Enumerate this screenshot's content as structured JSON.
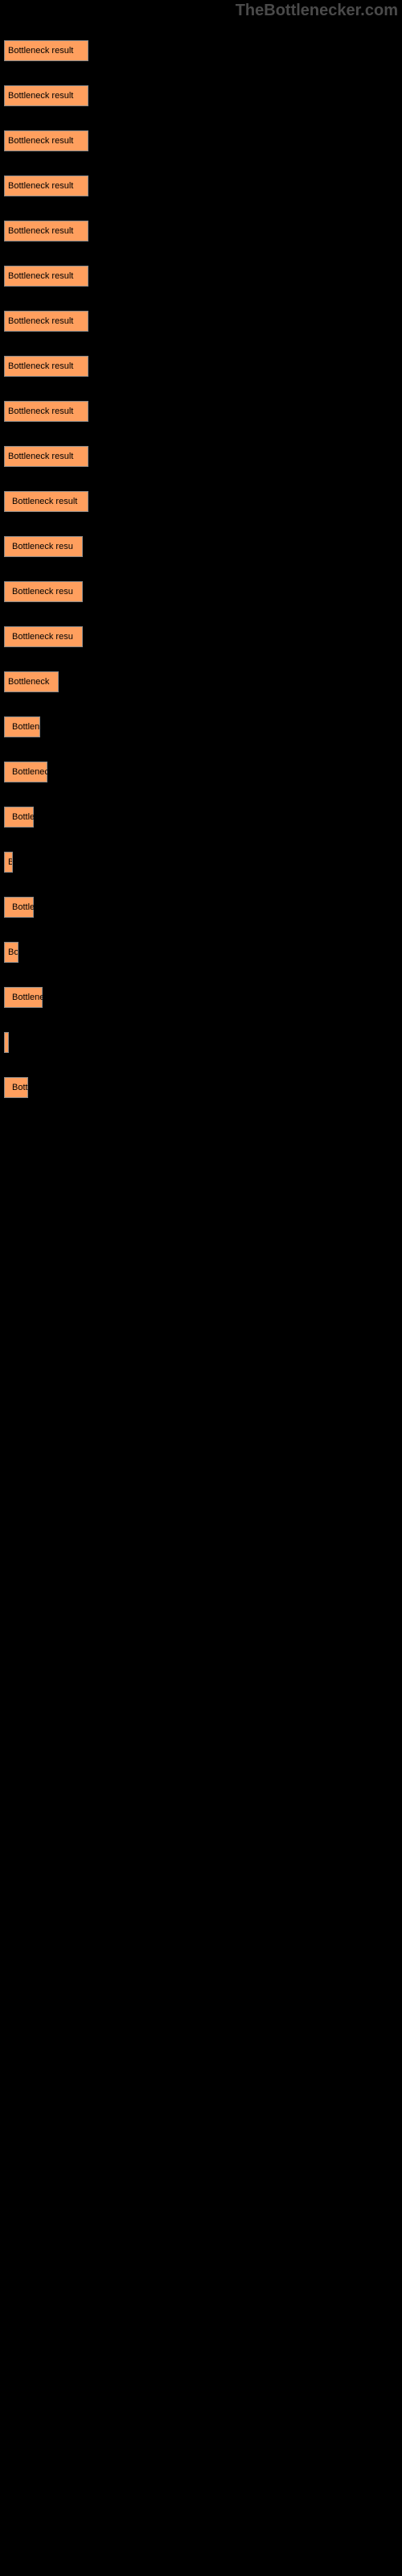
{
  "watermark": "TheBottlenecker.com",
  "chart": {
    "type": "bar",
    "bar_color": "#ff9f5e",
    "bar_border_color": "#888888",
    "background_color": "#000000",
    "label_color": "#000000",
    "label_fontsize": 11,
    "max_width": 105,
    "bars": [
      {
        "label": "Bottleneck result",
        "width": 105
      },
      {
        "label": "Bottleneck result",
        "width": 105
      },
      {
        "label": "Bottleneck result",
        "width": 105
      },
      {
        "label": "Bottleneck result",
        "width": 105
      },
      {
        "label": "Bottleneck result",
        "width": 105
      },
      {
        "label": "Bottleneck result",
        "width": 105
      },
      {
        "label": "Bottleneck result",
        "width": 105
      },
      {
        "label": "Bottleneck result",
        "width": 105
      },
      {
        "label": "Bottleneck result",
        "width": 105
      },
      {
        "label": "Bottleneck result",
        "width": 105
      },
      {
        "label": "Bottleneck result",
        "width": 105,
        "overflow": true
      },
      {
        "label": "Bottleneck resu",
        "width": 98,
        "overflow": true
      },
      {
        "label": "Bottleneck resu",
        "width": 98,
        "overflow": true
      },
      {
        "label": "Bottleneck resu",
        "width": 98,
        "overflow": true
      },
      {
        "label": "Bottleneck",
        "width": 68
      },
      {
        "label": "Bottlen",
        "width": 45,
        "overflow": true
      },
      {
        "label": "Bottleneck",
        "width": 54,
        "overflow": true
      },
      {
        "label": "Bottle",
        "width": 37,
        "overflow": true
      },
      {
        "label": "B",
        "width": 11
      },
      {
        "label": "Bottle",
        "width": 37,
        "overflow": true
      },
      {
        "label": "Bo",
        "width": 18
      },
      {
        "label": "Bottleneck",
        "width": 48,
        "overflow": true
      },
      {
        "label": "",
        "width": 2
      },
      {
        "label": "Bottleneck",
        "width": 30,
        "overflow": true
      }
    ]
  }
}
